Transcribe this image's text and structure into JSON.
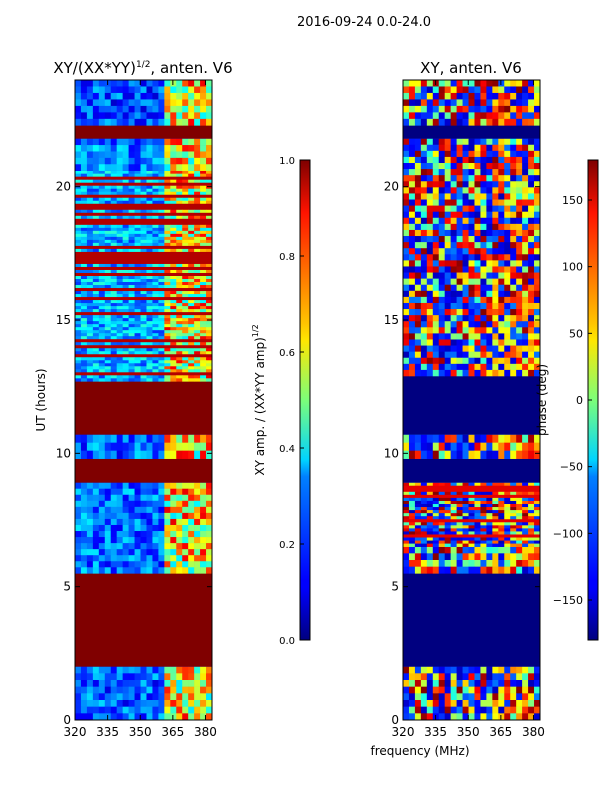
{
  "figure_title": "2016-09-24 0.0-24.0",
  "shared_xlabel": "frequency (MHz)",
  "chart_data": [
    {
      "type": "heatmap",
      "title": "XY/(XX*YY)^1/2, anten. V6",
      "title_main": "XY/(XX*YY)",
      "title_exp": "1/2",
      "title_tail": ", anten. V6",
      "ylabel": "UT (hours)",
      "xlim": [
        320,
        383
      ],
      "ylim": [
        0,
        24
      ],
      "xticks": [
        320,
        335,
        350,
        365,
        380
      ],
      "yticks": [
        0,
        5,
        10,
        15,
        20
      ],
      "colorbar": {
        "label": "XY amp. / (XX*YY amp)^1/2",
        "label_main": "XY amp. / (XX*YY amp)",
        "label_exp": "1/2",
        "range": [
          0.0,
          1.0
        ],
        "ticks": [
          "0.0",
          "0.2",
          "0.4",
          "0.6",
          "0.8",
          "1.0"
        ],
        "colormap": "jet"
      },
      "blocks": [
        {
          "y0": 0.0,
          "y1": 2.0,
          "kind": "noisy",
          "level": 0.18
        },
        {
          "y0": 2.0,
          "y1": 5.5,
          "kind": "solid",
          "level": 1.0
        },
        {
          "y0": 5.5,
          "y1": 8.9,
          "kind": "noisy",
          "level": 0.22
        },
        {
          "y0": 8.9,
          "y1": 9.8,
          "kind": "solid",
          "level": 1.0
        },
        {
          "y0": 9.8,
          "y1": 10.7,
          "kind": "noisy",
          "level": 0.2
        },
        {
          "y0": 10.7,
          "y1": 12.7,
          "kind": "solid",
          "level": 1.0
        },
        {
          "y0": 12.7,
          "y1": 20.6,
          "kind": "striped",
          "level": 0.35
        },
        {
          "y0": 20.6,
          "y1": 21.8,
          "kind": "noisy",
          "level": 0.25
        },
        {
          "y0": 21.8,
          "y1": 22.3,
          "kind": "solid",
          "level": 1.0
        },
        {
          "y0": 22.3,
          "y1": 24.0,
          "kind": "noisy",
          "level": 0.15
        }
      ]
    },
    {
      "type": "heatmap",
      "title": "XY, anten. V6",
      "ylabel": "phase (deg)",
      "xlim": [
        320,
        383
      ],
      "ylim": [
        0,
        24
      ],
      "xticks": [
        320,
        335,
        350,
        365,
        380
      ],
      "yticks": [
        0,
        5,
        10,
        15,
        20
      ],
      "colorbar": {
        "label": "phase (deg)",
        "range": [
          -180,
          180
        ],
        "ticks": [
          "−150",
          "−100",
          "−50",
          "0",
          "50",
          "100",
          "150"
        ],
        "tick_values": [
          -150,
          -100,
          -50,
          0,
          50,
          100,
          150
        ],
        "colormap": "jet"
      },
      "blocks": [
        {
          "y0": 0.0,
          "y1": 2.0,
          "kind": "phase",
          "level": 0.3
        },
        {
          "y0": 2.0,
          "y1": 5.5,
          "kind": "solid",
          "level": 0.0
        },
        {
          "y0": 5.5,
          "y1": 6.5,
          "kind": "phase",
          "level": 0.4
        },
        {
          "y0": 6.5,
          "y1": 8.9,
          "kind": "striped",
          "level": 0.5
        },
        {
          "y0": 8.9,
          "y1": 9.8,
          "kind": "solid",
          "level": 0.0
        },
        {
          "y0": 9.8,
          "y1": 10.7,
          "kind": "phase",
          "level": 0.5
        },
        {
          "y0": 10.7,
          "y1": 12.9,
          "kind": "solid",
          "level": 0.0
        },
        {
          "y0": 12.9,
          "y1": 21.8,
          "kind": "phase",
          "level": 0.35
        },
        {
          "y0": 21.8,
          "y1": 22.3,
          "kind": "solid",
          "level": 0.0
        },
        {
          "y0": 22.3,
          "y1": 24.0,
          "kind": "phase",
          "level": 0.55
        }
      ]
    }
  ]
}
